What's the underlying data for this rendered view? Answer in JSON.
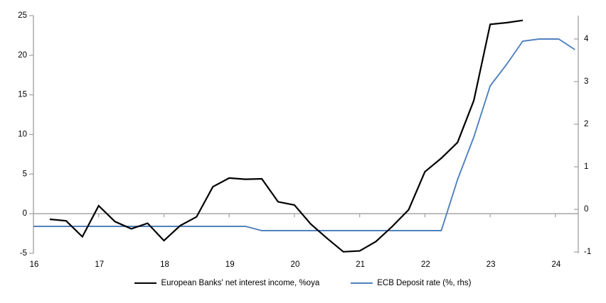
{
  "chart_data": {
    "type": "line",
    "title": "",
    "x_axis": {
      "ticks": [
        16,
        17,
        18,
        19,
        20,
        21,
        22,
        23,
        24
      ],
      "tick_labels": [
        "16",
        "17",
        "18",
        "19",
        "20",
        "21",
        "22",
        "23",
        "24"
      ],
      "range": [
        16,
        24.35
      ],
      "unit": "year"
    },
    "y_left": {
      "ticks": [
        -5,
        0,
        5,
        10,
        15,
        20,
        25
      ],
      "range": [
        -5,
        25
      ],
      "zero_line": true
    },
    "y_right": {
      "ticks": [
        -1,
        0,
        1,
        2,
        3,
        4
      ],
      "range": [
        -1.033,
        4.55
      ]
    },
    "grid": "off",
    "legend_position": "bottom-center",
    "series": [
      {
        "name": "European Banks' net interest income, %oya",
        "axis": "left",
        "color": "#000000",
        "stroke_width": 2.2,
        "points": [
          [
            16.25,
            -0.7
          ],
          [
            16.5,
            -0.9
          ],
          [
            16.75,
            -2.9
          ],
          [
            17.0,
            1.0
          ],
          [
            17.25,
            -1.0
          ],
          [
            17.5,
            -1.9
          ],
          [
            17.75,
            -1.2
          ],
          [
            18.0,
            -3.4
          ],
          [
            18.25,
            -1.5
          ],
          [
            18.5,
            -0.4
          ],
          [
            18.75,
            3.4
          ],
          [
            19.0,
            4.5
          ],
          [
            19.25,
            4.35
          ],
          [
            19.5,
            4.4
          ],
          [
            19.75,
            1.5
          ],
          [
            20.0,
            1.1
          ],
          [
            20.25,
            -1.3
          ],
          [
            20.5,
            -3.1
          ],
          [
            20.75,
            -4.8
          ],
          [
            21.0,
            -4.7
          ],
          [
            21.25,
            -3.5
          ],
          [
            21.5,
            -1.6
          ],
          [
            21.75,
            0.5
          ],
          [
            22.0,
            5.3
          ],
          [
            22.25,
            7.0
          ],
          [
            22.5,
            9.0
          ],
          [
            22.75,
            14.3
          ],
          [
            23.0,
            23.9
          ],
          [
            23.25,
            24.1
          ],
          [
            23.5,
            24.4
          ]
        ]
      },
      {
        "name": "ECB Deposit rate (%, rhs)",
        "axis": "right",
        "color": "#4f81bd",
        "stroke_width": 1.9,
        "points": [
          [
            16.0,
            -0.4
          ],
          [
            19.25,
            -0.4
          ],
          [
            19.5,
            -0.5
          ],
          [
            22.25,
            -0.5
          ],
          [
            22.5,
            0.7
          ],
          [
            22.75,
            1.7
          ],
          [
            23.0,
            2.9
          ],
          [
            23.25,
            3.4
          ],
          [
            23.5,
            3.95
          ],
          [
            23.75,
            4.0
          ],
          [
            24.05,
            4.0
          ],
          [
            24.3,
            3.75
          ]
        ]
      }
    ]
  },
  "colors": {
    "axis_gray": "#a6a6a6",
    "background": "#ffffff",
    "text": "#000000"
  }
}
